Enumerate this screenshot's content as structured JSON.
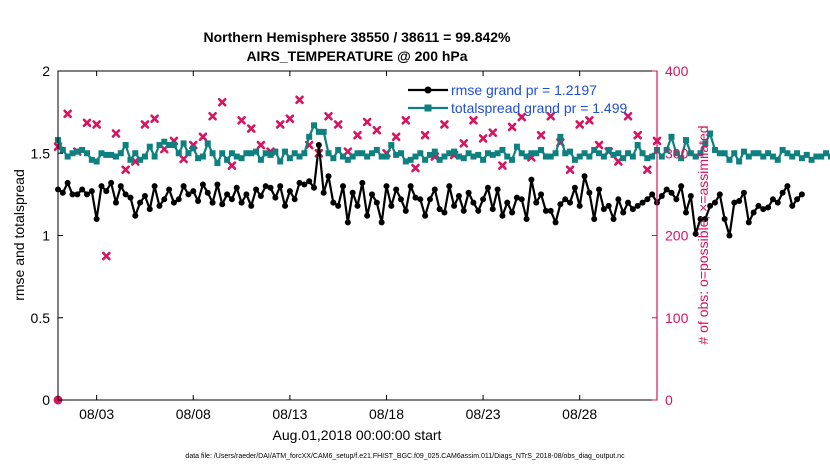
{
  "chart_data": {
    "type": "line",
    "title_line1": "Northern Hemisphere 38550 / 38611 = 99.842%",
    "title_line2": "AIRS_TEMPERATURE @ 200 hPa",
    "ylabel_left": "rmse and totalspread",
    "ylabel_right": "# of obs: o=possible; ×=assimilated",
    "xlabel": "Aug.01,2018 00:00:00 start",
    "footer": "data file: /Users/raeder/DAI/ATM_forcXX/CAM6_setup/f.e21.FHIST_BGC.f09_025.CAM6assim.011/Diags_NTrS_2018-08/obs_diag_output.nc",
    "xlim": [
      1.0,
      32.0
    ],
    "ylim_left": [
      0,
      2
    ],
    "ylim_right": [
      0,
      400
    ],
    "x_ticks": [
      3,
      8,
      13,
      18,
      23,
      28
    ],
    "x_tick_labels": [
      "08/03",
      "08/08",
      "08/13",
      "08/18",
      "08/23",
      "08/28"
    ],
    "y_left_ticks": [
      0,
      0.5,
      1,
      1.5,
      2
    ],
    "y_left_tick_labels": [
      "0",
      "0.5",
      "1",
      "1.5",
      "2"
    ],
    "y_right_ticks": [
      0,
      100,
      200,
      300,
      400
    ],
    "y_right_tick_labels": [
      "0",
      "100",
      "200",
      "300",
      "400"
    ],
    "legend": [
      {
        "label": "rmse grand pr = 1.2197",
        "color": "#000000",
        "marker": "circle"
      },
      {
        "label": "totalspread grand pr = 1.499",
        "color": "#0f8080",
        "marker": "square"
      }
    ],
    "legend_position": "top-right",
    "series": [
      {
        "name": "rmse",
        "color": "#000000",
        "x_start": 1.0,
        "x_step": 0.25,
        "values": [
          1.28,
          1.26,
          1.32,
          1.25,
          1.25,
          1.28,
          1.25,
          1.27,
          1.1,
          1.3,
          1.27,
          1.32,
          1.2,
          1.3,
          1.25,
          1.23,
          1.12,
          1.2,
          1.24,
          1.16,
          1.3,
          1.18,
          1.22,
          1.28,
          1.2,
          1.22,
          1.3,
          1.25,
          1.27,
          1.21,
          1.31,
          1.26,
          1.2,
          1.31,
          1.19,
          1.25,
          1.22,
          1.29,
          1.2,
          1.25,
          1.18,
          1.28,
          1.24,
          1.3,
          1.29,
          1.23,
          1.3,
          1.18,
          1.27,
          1.22,
          1.32,
          1.31,
          1.33,
          1.29,
          1.55,
          1.26,
          1.36,
          1.2,
          1.18,
          1.3,
          1.08,
          1.26,
          1.18,
          1.32,
          1.12,
          1.25,
          1.2,
          1.08,
          1.3,
          1.18,
          1.28,
          1.22,
          1.15,
          1.3,
          1.23,
          1.22,
          1.12,
          1.22,
          1.28,
          1.16,
          1.14,
          1.3,
          1.18,
          1.24,
          1.15,
          1.26,
          1.2,
          1.15,
          1.22,
          1.29,
          1.16,
          1.28,
          1.12,
          1.2,
          1.14,
          1.23,
          1.22,
          1.1,
          1.34,
          1.2,
          1.25,
          1.15,
          1.15,
          1.08,
          1.19,
          1.22,
          1.2,
          1.29,
          1.18,
          1.36,
          1.26,
          1.1,
          1.28,
          1.16,
          1.18,
          1.1,
          1.22,
          1.14,
          1.2,
          1.16,
          1.18,
          1.2,
          1.22,
          1.25,
          1.2,
          1.24,
          1.28,
          1.26,
          1.22,
          1.3,
          1.14,
          1.24,
          1.01,
          1.1,
          1.1,
          1.18,
          1.2,
          1.25,
          1.1,
          1.0,
          1.2,
          1.21,
          1.26,
          1.08,
          1.14,
          1.18,
          1.16,
          1.17,
          1.22,
          1.2,
          1.26,
          1.3,
          1.18,
          1.22,
          1.25
        ]
      },
      {
        "name": "totalspread",
        "color": "#0f8080",
        "x_start": 1.0,
        "x_step": 0.25,
        "values": [
          1.58,
          1.52,
          1.48,
          1.5,
          1.51,
          1.52,
          1.5,
          1.46,
          1.45,
          1.5,
          1.49,
          1.49,
          1.48,
          1.5,
          1.55,
          1.46,
          1.5,
          1.46,
          1.48,
          1.54,
          1.48,
          1.55,
          1.57,
          1.55,
          1.55,
          1.5,
          1.56,
          1.5,
          1.53,
          1.47,
          1.48,
          1.56,
          1.5,
          1.44,
          1.5,
          1.46,
          1.5,
          1.48,
          1.47,
          1.5,
          1.5,
          1.51,
          1.46,
          1.5,
          1.49,
          1.51,
          1.45,
          1.51,
          1.47,
          1.5,
          1.48,
          1.5,
          1.6,
          1.67,
          1.63,
          1.63,
          1.5,
          1.47,
          1.52,
          1.48,
          1.46,
          1.48,
          1.5,
          1.5,
          1.48,
          1.5,
          1.52,
          1.48,
          1.48,
          1.55,
          1.49,
          1.5,
          1.45,
          1.46,
          1.48,
          1.5,
          1.46,
          1.49,
          1.51,
          1.46,
          1.48,
          1.5,
          1.51,
          1.48,
          1.47,
          1.5,
          1.48,
          1.49,
          1.46,
          1.5,
          1.49,
          1.5,
          1.52,
          1.48,
          1.46,
          1.54,
          1.5,
          1.48,
          1.5,
          1.5,
          1.52,
          1.48,
          1.48,
          1.5,
          1.6,
          1.5,
          1.51,
          1.46,
          1.48,
          1.5,
          1.48,
          1.52,
          1.5,
          1.48,
          1.52,
          1.49,
          1.5,
          1.47,
          1.5,
          1.48,
          1.55,
          1.5,
          1.47,
          1.48,
          1.52,
          1.48,
          1.52,
          1.6,
          1.5,
          1.47,
          1.58,
          1.5,
          1.48,
          1.5,
          1.56,
          1.62,
          1.52,
          1.5,
          1.5,
          1.46,
          1.5,
          1.45,
          1.51,
          1.48,
          1.5,
          1.5,
          1.48,
          1.5,
          1.48,
          1.46,
          1.52,
          1.5,
          1.48,
          1.5,
          1.47,
          1.49,
          1.46,
          1.48,
          1.48,
          1.5,
          1.48,
          1.46,
          1.48
        ]
      },
      {
        "name": "obs_possible",
        "color": "#d6145f",
        "marker": "o",
        "x": [
          1.0
        ],
        "values": [
          0
        ]
      },
      {
        "name": "obs_assimilated",
        "color": "#d6145f",
        "marker": "x",
        "x_start": 1.0,
        "x_step": 0.5,
        "values": [
          308,
          348,
          302,
          337,
          335,
          175,
          324,
          280,
          290,
          335,
          342,
          305,
          315,
          293,
          310,
          320,
          345,
          362,
          285,
          340,
          330,
          310,
          302,
          335,
          342,
          365,
          310,
          300,
          345,
          335,
          302,
          322,
          338,
          328,
          300,
          320,
          340,
          282,
          322,
          296,
          335,
          298,
          312,
          340,
          318,
          325,
          285,
          332,
          344,
          295,
          322,
          345,
          313,
          280,
          335,
          340,
          310,
          302,
          290,
          345,
          322,
          280,
          315,
          342,
          308,
          335,
          325,
          290,
          313,
          342,
          303,
          332,
          320,
          282,
          345,
          335,
          318,
          295,
          312,
          340,
          298,
          320,
          308,
          292,
          312,
          325,
          352,
          300,
          340,
          330,
          288,
          312,
          320,
          335,
          300,
          330,
          310,
          292,
          340,
          328,
          312,
          318,
          300,
          320,
          296,
          336,
          330,
          315,
          332,
          296,
          312,
          310,
          318,
          332,
          300,
          342,
          330,
          300,
          328,
          304,
          312,
          338,
          320,
          300,
          302,
          320,
          330,
          290,
          315,
          332,
          320,
          300,
          345,
          320,
          290,
          318,
          336,
          300,
          320,
          335,
          300,
          312,
          322,
          298,
          345,
          320,
          305,
          325,
          300,
          312,
          330,
          320,
          296,
          300,
          290,
          328,
          320,
          310,
          300,
          322,
          300,
          328,
          318,
          320,
          300,
          312,
          320,
          296,
          320,
          310,
          300,
          322,
          302,
          312,
          296,
          322,
          308,
          300,
          320,
          312,
          300,
          308,
          320,
          318,
          300
        ]
      }
    ]
  }
}
